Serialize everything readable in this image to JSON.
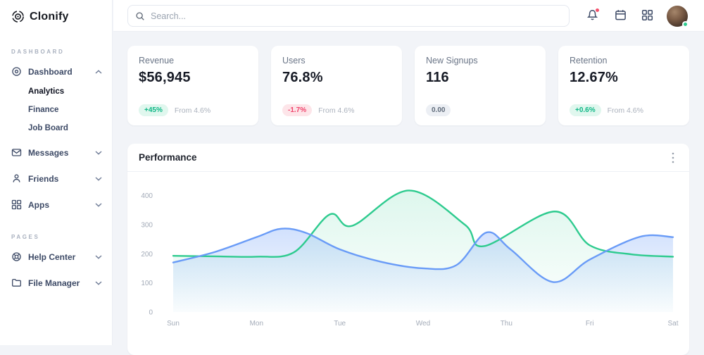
{
  "app": {
    "name": "Clonify"
  },
  "topbar": {
    "search_placeholder": "Search..."
  },
  "sidebar": {
    "logo_text": "Clonify",
    "sections": [
      {
        "label": "DASHBOARD",
        "items": [
          {
            "label": "Dashboard",
            "expanded": true,
            "children": [
              "Analytics",
              "Finance",
              "Job Board"
            ],
            "active_child": "Analytics"
          },
          {
            "label": "Messages"
          },
          {
            "label": "Friends"
          },
          {
            "label": "Apps"
          }
        ]
      },
      {
        "label": "PAGES",
        "items": [
          {
            "label": "Help Center"
          },
          {
            "label": "File Manager"
          }
        ]
      }
    ]
  },
  "stat_cards": [
    {
      "title": "Revenue",
      "value": "$56,945",
      "badge": "+45%",
      "badge_type": "up",
      "note": "From 4.6%"
    },
    {
      "title": "Users",
      "value": "76.8%",
      "badge": "-1.7%",
      "badge_type": "down",
      "note": "From 4.6%"
    },
    {
      "title": "New Signups",
      "value": "116",
      "badge": "0.00",
      "badge_type": "neutral",
      "note": ""
    },
    {
      "title": "Retention",
      "value": "12.67%",
      "badge": "+0.6%",
      "badge_type": "up",
      "note": "From 4.6%"
    }
  ],
  "performance": {
    "title": "Performance"
  },
  "chart_data": {
    "type": "area",
    "title": "Performance",
    "categories": [
      "Sun",
      "Mon",
      "Tue",
      "Wed",
      "Thu",
      "Fri",
      "Sat"
    ],
    "y_ticks": [
      0,
      100,
      200,
      300,
      400
    ],
    "ylim": [
      0,
      430
    ],
    "grid": false,
    "legend": "none",
    "series": [
      {
        "name": "series-green",
        "color": "#2ecb8f",
        "fill_from": "rgba(46,203,143,0.16)",
        "fill_to": "rgba(46,203,143,0.01)",
        "points": [
          [
            0,
            193
          ],
          [
            0.5,
            191
          ],
          [
            1,
            190
          ],
          [
            1.45,
            205
          ],
          [
            1.88,
            335
          ],
          [
            2.15,
            296
          ],
          [
            2.83,
            417
          ],
          [
            3.5,
            300
          ],
          [
            3.73,
            226
          ],
          [
            4.58,
            345
          ],
          [
            5,
            229
          ],
          [
            5.5,
            198
          ],
          [
            6,
            190
          ]
        ]
      },
      {
        "name": "series-blue",
        "color": "#699bf7",
        "fill_from": "rgba(105,155,247,0.30)",
        "fill_to": "rgba(105,155,247,0.02)",
        "points": [
          [
            0,
            170
          ],
          [
            0.5,
            206
          ],
          [
            1,
            257
          ],
          [
            1.3,
            286
          ],
          [
            1.6,
            271
          ],
          [
            2,
            215
          ],
          [
            2.5,
            172
          ],
          [
            3,
            150
          ],
          [
            3.4,
            161
          ],
          [
            3.76,
            273
          ],
          [
            4.05,
            215
          ],
          [
            4.56,
            103
          ],
          [
            5,
            180
          ],
          [
            5.6,
            258
          ],
          [
            6,
            257
          ]
        ]
      }
    ]
  }
}
